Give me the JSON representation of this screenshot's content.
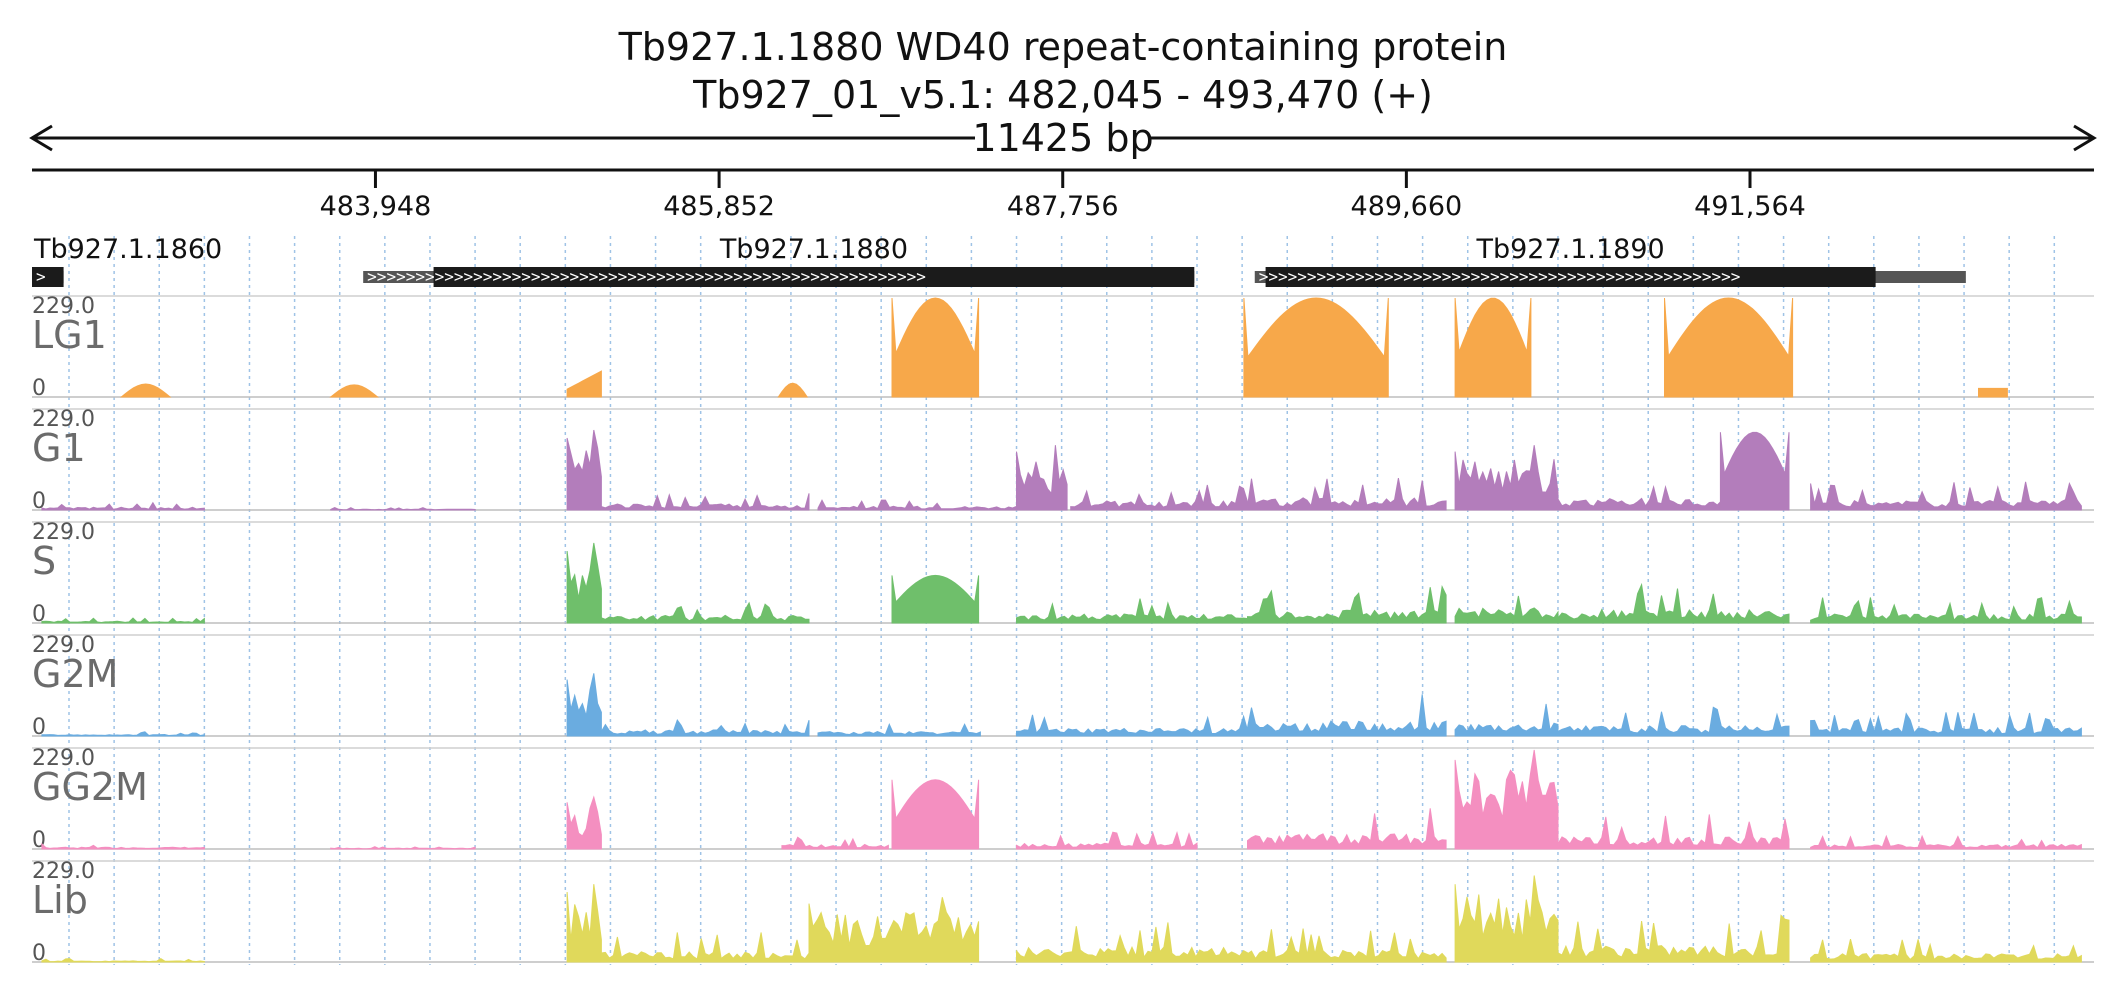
{
  "header": {
    "title": "Tb927.1.1880  WD40 repeat-containing protein",
    "subtitle": "Tb927_01_v5.1: 482,045 - 493,470 (+)",
    "span_label": "11425 bp"
  },
  "chart_data": {
    "type": "area",
    "region": {
      "chrom": "Tb927_01_v5.1",
      "start": 482045,
      "end": 493470,
      "strand": "+"
    },
    "ticks": [
      {
        "pos": 483948,
        "label": "483,948"
      },
      {
        "pos": 485852,
        "label": "485,852"
      },
      {
        "pos": 487756,
        "label": "487,756"
      },
      {
        "pos": 489660,
        "label": "489,660"
      },
      {
        "pos": 491564,
        "label": "491,564"
      }
    ],
    "genes": [
      {
        "name": "Tb927.1.1860",
        "utr": [
          482045,
          482220
        ],
        "cds": [
          482045,
          482220
        ]
      },
      {
        "name": "Tb927.1.1880",
        "utr": [
          483880,
          488485
        ],
        "cds": [
          484270,
          488485
        ]
      },
      {
        "name": "Tb927.1.1890",
        "utr": [
          488820,
          492760
        ],
        "cds": [
          488880,
          492260
        ]
      }
    ],
    "tracks": [
      {
        "name": "LG1",
        "max": "229.0",
        "min": "0",
        "color": "#f7a84a",
        "segments": [
          {
            "range": [
              482540,
              482810
            ],
            "peak": 30,
            "shape": "hump"
          },
          {
            "range": [
              483700,
              483960
            ],
            "peak": 28,
            "shape": "hump"
          },
          {
            "range": [
              485010,
              485200
            ],
            "peak": 60,
            "shape": "rise"
          },
          {
            "range": [
              486180,
              486340
            ],
            "peak": 32,
            "shape": "hump"
          },
          {
            "range": [
              486810,
              487290
            ],
            "peak": 229,
            "shape": "dome"
          },
          {
            "range": [
              488760,
              489560
            ],
            "peak": 229,
            "shape": "dome"
          },
          {
            "range": [
              489930,
              490350
            ],
            "peak": 229,
            "shape": "dome"
          },
          {
            "range": [
              491090,
              491800
            ],
            "peak": 229,
            "shape": "dome"
          },
          {
            "range": [
              492830,
              492990
            ],
            "peak": 20,
            "shape": "flat"
          }
        ]
      },
      {
        "name": "G1",
        "max": "229.0",
        "min": "0",
        "color": "#b37dbb",
        "segments": [
          {
            "range": [
              482100,
              483000
            ],
            "peak": 18,
            "shape": "noise"
          },
          {
            "range": [
              483700,
              484500
            ],
            "peak": 6,
            "shape": "noise"
          },
          {
            "range": [
              485010,
              485200
            ],
            "peak": 185,
            "shape": "spiky"
          },
          {
            "range": [
              485200,
              486350
            ],
            "peak": 40,
            "shape": "noise"
          },
          {
            "range": [
              486400,
              487500
            ],
            "peak": 25,
            "shape": "noise"
          },
          {
            "range": [
              487500,
              487780
            ],
            "peak": 150,
            "shape": "spiky"
          },
          {
            "range": [
              487800,
              488780
            ],
            "peak": 60,
            "shape": "noise"
          },
          {
            "range": [
              488780,
              489880
            ],
            "peak": 80,
            "shape": "noise"
          },
          {
            "range": [
              489930,
              490500
            ],
            "peak": 150,
            "shape": "spiky"
          },
          {
            "range": [
              490500,
              491780
            ],
            "peak": 80,
            "shape": "noise"
          },
          {
            "range": [
              491400,
              491780
            ],
            "peak": 180,
            "shape": "dome"
          },
          {
            "range": [
              491900,
              493400
            ],
            "peak": 70,
            "shape": "noise"
          }
        ]
      },
      {
        "name": "S",
        "max": "229.0",
        "min": "0",
        "color": "#6fbf6b",
        "segments": [
          {
            "range": [
              482100,
              483000
            ],
            "peak": 12,
            "shape": "noise"
          },
          {
            "range": [
              485010,
              485200
            ],
            "peak": 185,
            "shape": "spiky"
          },
          {
            "range": [
              485200,
              486350
            ],
            "peak": 50,
            "shape": "noise"
          },
          {
            "range": [
              486810,
              487290
            ],
            "peak": 110,
            "shape": "dome"
          },
          {
            "range": [
              487500,
              488780
            ],
            "peak": 60,
            "shape": "noise"
          },
          {
            "range": [
              488780,
              489880
            ],
            "peak": 85,
            "shape": "noise"
          },
          {
            "range": [
              489930,
              490500
            ],
            "peak": 100,
            "shape": "noise"
          },
          {
            "range": [
              490500,
              491780
            ],
            "peak": 90,
            "shape": "noise"
          },
          {
            "range": [
              491900,
              493400
            ],
            "peak": 60,
            "shape": "noise"
          }
        ]
      },
      {
        "name": "G2M",
        "max": "229.0",
        "min": "0",
        "color": "#6aace0",
        "segments": [
          {
            "range": [
              482100,
              483000
            ],
            "peak": 10,
            "shape": "noise"
          },
          {
            "range": [
              485010,
              485200
            ],
            "peak": 145,
            "shape": "spiky"
          },
          {
            "range": [
              485200,
              486350
            ],
            "peak": 40,
            "shape": "noise"
          },
          {
            "range": [
              486400,
              487300
            ],
            "peak": 30,
            "shape": "noise"
          },
          {
            "range": [
              487500,
              488780
            ],
            "peak": 50,
            "shape": "noise"
          },
          {
            "range": [
              488780,
              489880
            ],
            "peak": 100,
            "shape": "noise"
          },
          {
            "range": [
              489930,
              490500
            ],
            "peak": 85,
            "shape": "noise"
          },
          {
            "range": [
              490500,
              491780
            ],
            "peak": 70,
            "shape": "noise"
          },
          {
            "range": [
              491900,
              493400
            ],
            "peak": 55,
            "shape": "noise"
          }
        ]
      },
      {
        "name": "GG2M",
        "max": "229.0",
        "min": "0",
        "color": "#f48fc0",
        "segments": [
          {
            "range": [
              482100,
              483000
            ],
            "peak": 12,
            "shape": "noise"
          },
          {
            "range": [
              483700,
              484500
            ],
            "peak": 6,
            "shape": "noise"
          },
          {
            "range": [
              485010,
              485200
            ],
            "peak": 120,
            "shape": "spiky"
          },
          {
            "range": [
              486200,
              486790
            ],
            "peak": 30,
            "shape": "noise"
          },
          {
            "range": [
              486810,
              487290
            ],
            "peak": 160,
            "shape": "dome"
          },
          {
            "range": [
              487500,
              488500
            ],
            "peak": 40,
            "shape": "noise"
          },
          {
            "range": [
              488780,
              489880
            ],
            "peak": 100,
            "shape": "noise"
          },
          {
            "range": [
              489930,
              490500
            ],
            "peak": 229,
            "shape": "spiky"
          },
          {
            "range": [
              490500,
              491780
            ],
            "peak": 80,
            "shape": "noise"
          },
          {
            "range": [
              491900,
              493400
            ],
            "peak": 30,
            "shape": "noise"
          }
        ]
      },
      {
        "name": "Lib",
        "max": "229.0",
        "min": "0",
        "color": "#e0d95b",
        "segments": [
          {
            "range": [
              482100,
              483000
            ],
            "peak": 8,
            "shape": "noise"
          },
          {
            "range": [
              485010,
              485200
            ],
            "peak": 180,
            "shape": "spiky"
          },
          {
            "range": [
              485200,
              486350
            ],
            "peak": 70,
            "shape": "noise"
          },
          {
            "range": [
              486350,
              487290
            ],
            "peak": 150,
            "shape": "spiky"
          },
          {
            "range": [
              487500,
              488780
            ],
            "peak": 100,
            "shape": "noise"
          },
          {
            "range": [
              488780,
              489880
            ],
            "peak": 80,
            "shape": "noise"
          },
          {
            "range": [
              489930,
              490500
            ],
            "peak": 200,
            "shape": "spiky"
          },
          {
            "range": [
              490500,
              491780
            ],
            "peak": 110,
            "shape": "noise"
          },
          {
            "range": [
              491900,
              493400
            ],
            "peak": 55,
            "shape": "noise"
          }
        ]
      }
    ]
  }
}
